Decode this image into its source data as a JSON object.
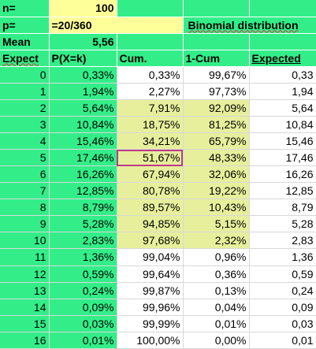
{
  "labels": {
    "n": "n=",
    "p": "p=",
    "mean": "Mean",
    "title": "Binomial distribution"
  },
  "values": {
    "n": "100",
    "p_formula": "=20/360",
    "mean": "5,56"
  },
  "headers": {
    "expect": "Expect",
    "pxk": "P(X=k)",
    "cum": "Cum.",
    "one_cum": "1-Cum",
    "expected": "Expected"
  },
  "rows": [
    {
      "k": "0",
      "p": "0,33%",
      "cum": "0,33%",
      "one_cum": "99,67%",
      "exp": "0,33"
    },
    {
      "k": "1",
      "p": "1,94%",
      "cum": "2,27%",
      "one_cum": "97,73%",
      "exp": "1,94"
    },
    {
      "k": "2",
      "p": "5,64%",
      "cum": "7,91%",
      "one_cum": "92,09%",
      "exp": "5,64"
    },
    {
      "k": "3",
      "p": "10,84%",
      "cum": "18,75%",
      "one_cum": "81,25%",
      "exp": "10,84"
    },
    {
      "k": "4",
      "p": "15,46%",
      "cum": "34,21%",
      "one_cum": "65,79%",
      "exp": "15,46"
    },
    {
      "k": "5",
      "p": "17,46%",
      "cum": "51,67%",
      "one_cum": "48,33%",
      "exp": "17,46"
    },
    {
      "k": "6",
      "p": "16,26%",
      "cum": "67,94%",
      "one_cum": "32,06%",
      "exp": "16,26"
    },
    {
      "k": "7",
      "p": "12,85%",
      "cum": "80,78%",
      "one_cum": "19,22%",
      "exp": "12,85"
    },
    {
      "k": "8",
      "p": "8,79%",
      "cum": "89,57%",
      "one_cum": "10,43%",
      "exp": "8,79"
    },
    {
      "k": "9",
      "p": "5,28%",
      "cum": "94,85%",
      "one_cum": "5,15%",
      "exp": "5,28"
    },
    {
      "k": "10",
      "p": "2,83%",
      "cum": "97,68%",
      "one_cum": "2,32%",
      "exp": "2,83"
    },
    {
      "k": "11",
      "p": "1,36%",
      "cum": "99,04%",
      "one_cum": "0,96%",
      "exp": "1,36"
    },
    {
      "k": "12",
      "p": "0,59%",
      "cum": "99,64%",
      "one_cum": "0,36%",
      "exp": "0,59"
    },
    {
      "k": "13",
      "p": "0,24%",
      "cum": "99,87%",
      "one_cum": "0,13%",
      "exp": "0,24"
    },
    {
      "k": "14",
      "p": "0,09%",
      "cum": "99,96%",
      "one_cum": "0,04%",
      "exp": "0,09"
    },
    {
      "k": "15",
      "p": "0,03%",
      "cum": "99,99%",
      "one_cum": "0,01%",
      "exp": "0,03"
    },
    {
      "k": "16",
      "p": "0,01%",
      "cum": "100,00%",
      "one_cum": "0,00%",
      "exp": "0,01"
    }
  ],
  "colors": {
    "green": "#33ee88",
    "yellow": "#ffff99",
    "olive": "#e7ef9c",
    "selection": "#c0398c"
  }
}
